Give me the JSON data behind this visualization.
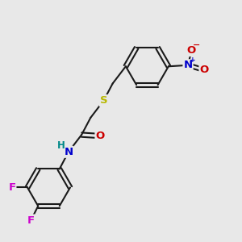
{
  "bg_color": "#e8e8e8",
  "bond_color": "#1a1a1a",
  "bond_width": 1.5,
  "atom_colors": {
    "S": "#b8b800",
    "N_amide": "#0000cc",
    "N_nitro": "#0000cc",
    "O": "#cc0000",
    "F": "#cc00cc",
    "H": "#008888",
    "C": "#1a1a1a"
  },
  "font_size_atom": 9.5,
  "font_size_charge": 7.5
}
